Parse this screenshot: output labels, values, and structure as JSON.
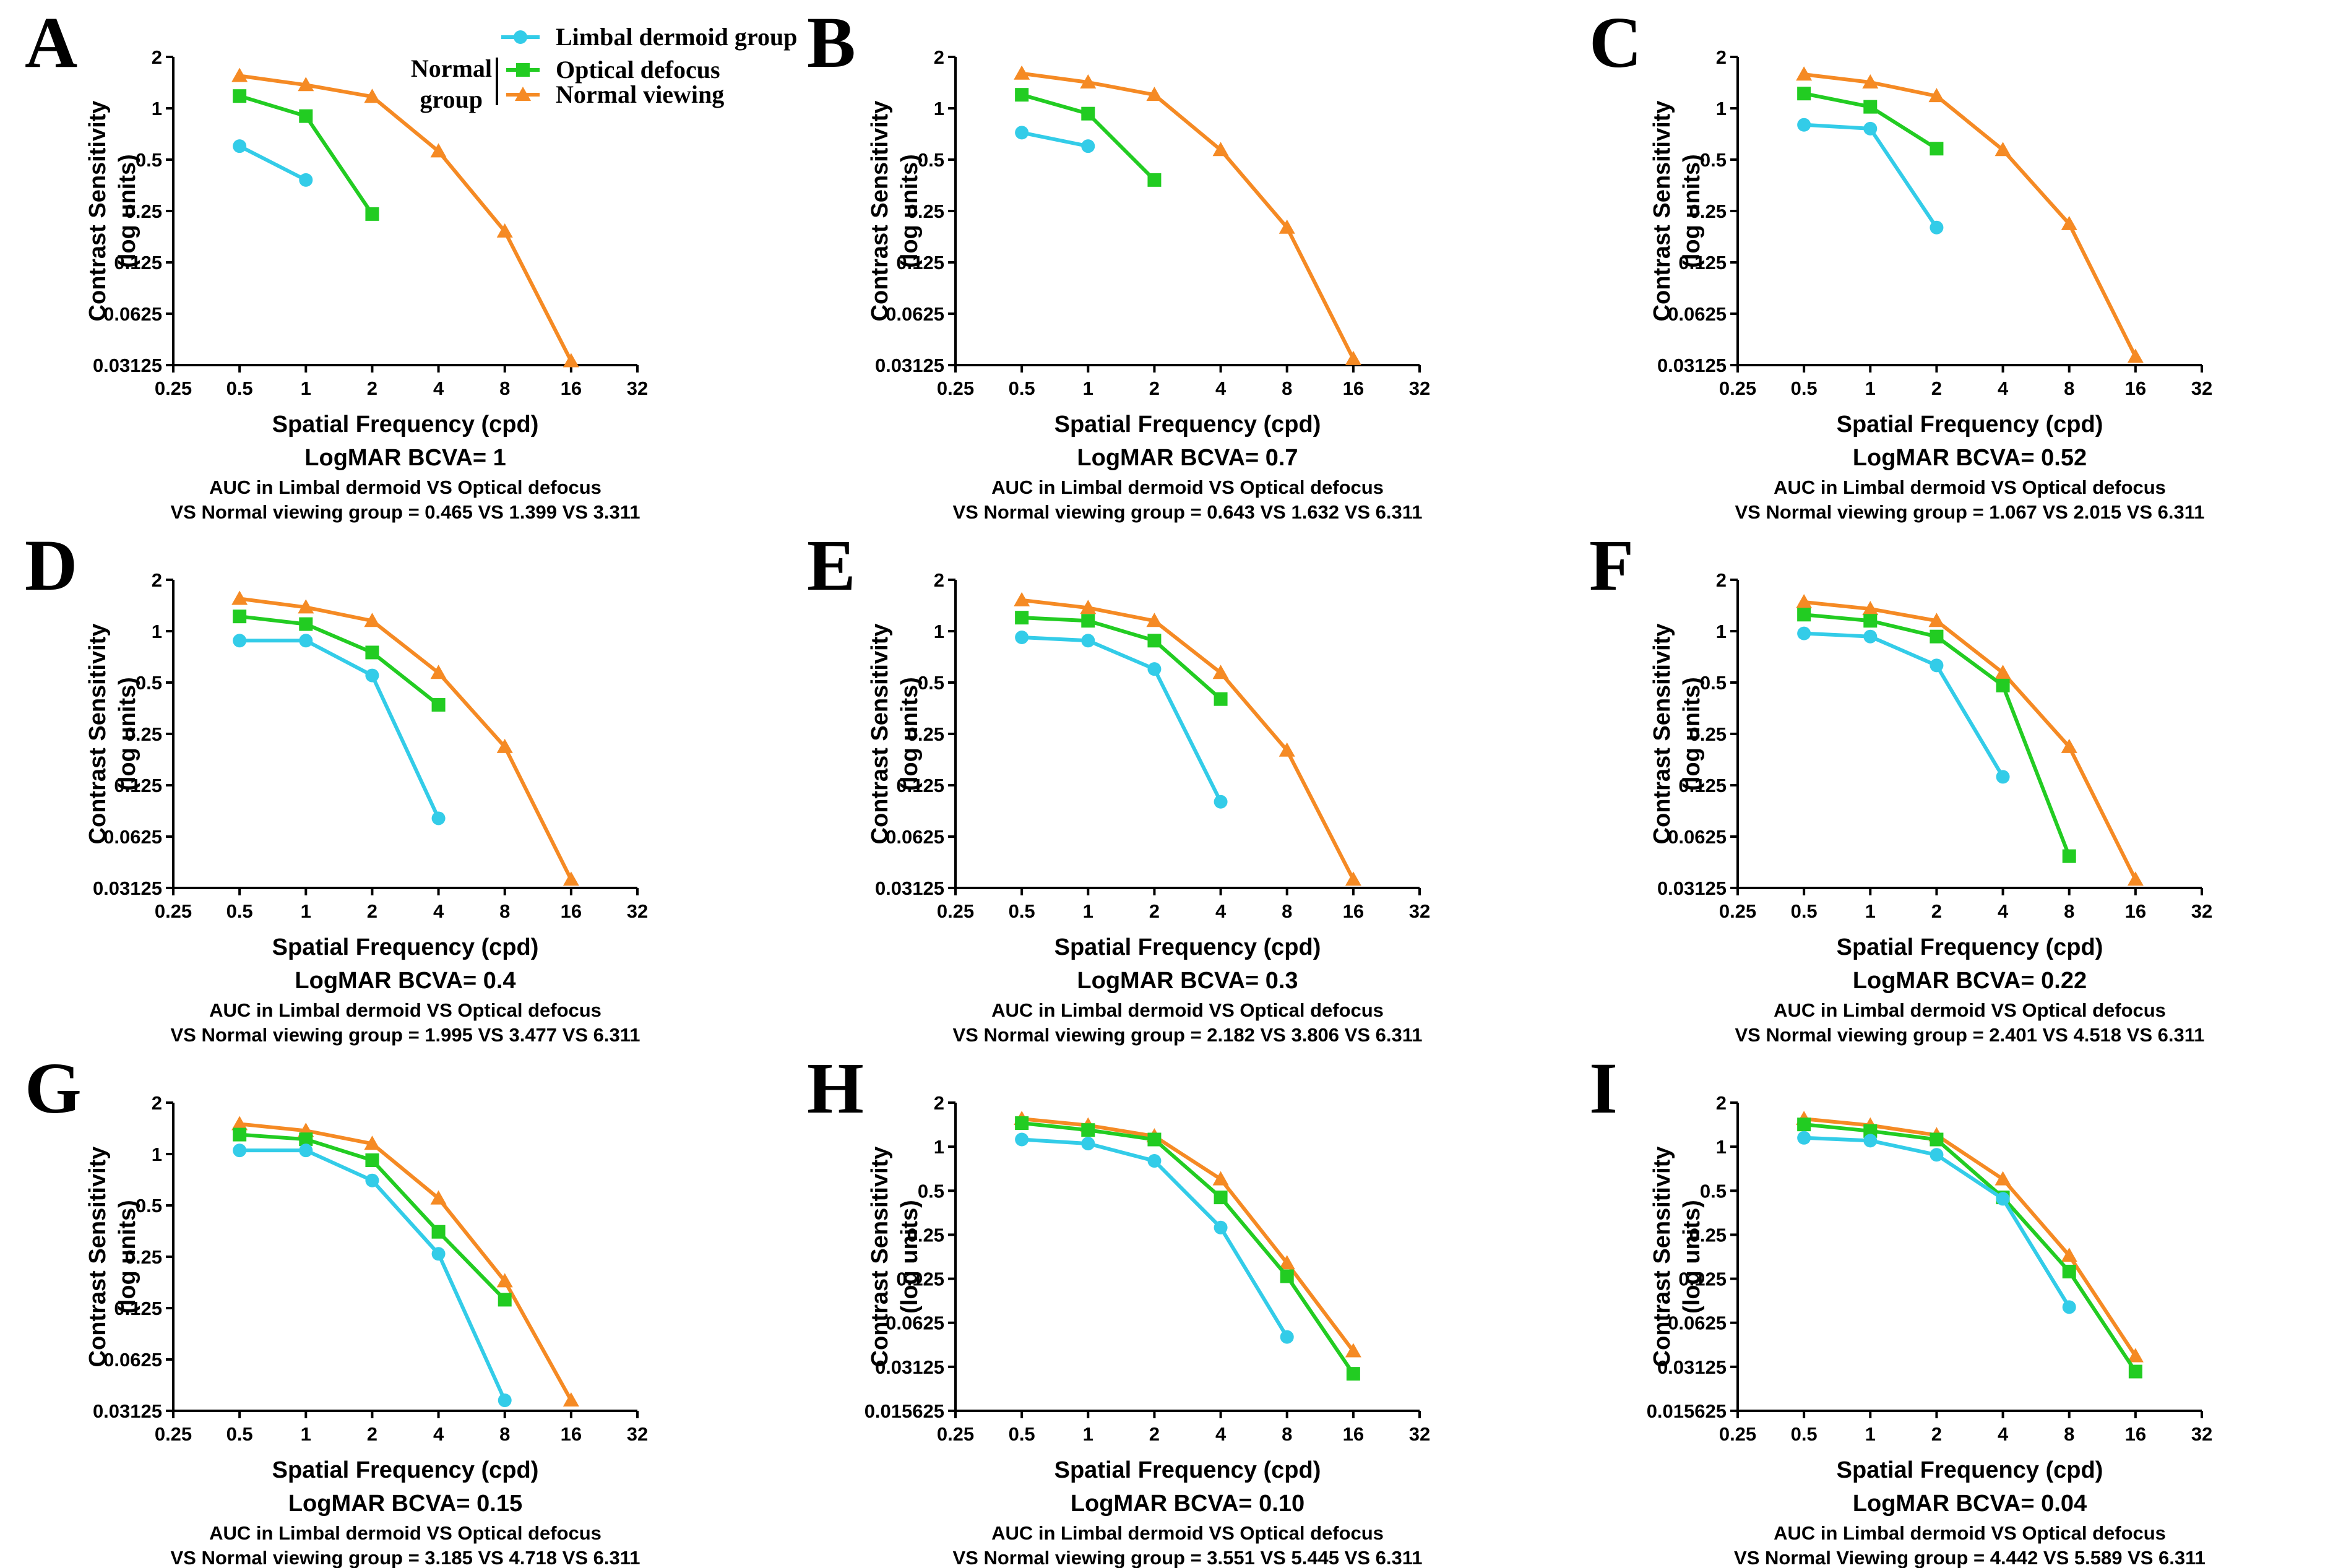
{
  "colors": {
    "limbal": "#33cce8",
    "optical": "#22cc22",
    "normal": "#f58a24",
    "axis": "#000000"
  },
  "legend": {
    "limbal": "Limbal dermoid group",
    "optical": "Optical defocus",
    "normal": "Normal viewing",
    "normal_group_1": "Normal",
    "normal_group_2": "group"
  },
  "common": {
    "xlabel": "Spatial Frequency (cpd)",
    "ylabel_1": "Contrast Sensitivity",
    "ylabel_2": "(log units)",
    "x_ticks": [
      "0.25",
      "0.5",
      "1",
      "2",
      "4",
      "8",
      "16",
      "32"
    ],
    "auc_line1": "AUC in Limbal dermoid  VS Optical defocus"
  },
  "chart_data": [
    {
      "id": "A",
      "type": "line",
      "bcva": "LogMAR BCVA= 1",
      "auc_line2": "VS Normal viewing group = 0.465 VS 1.399 VS 3.311",
      "xlabel": "Spatial Frequency (cpd)",
      "ylabel": "Contrast Sensitivity (log units)",
      "x_axis": {
        "scale": "log2",
        "range": [
          0.25,
          32
        ]
      },
      "y_axis": {
        "scale": "log2",
        "range": [
          0.03125,
          2
        ],
        "ticks": [
          "0.03125",
          "0.0625",
          "0.125",
          "0.25",
          "0.5",
          "1",
          "2"
        ]
      },
      "series": [
        {
          "name": "Limbal dermoid group",
          "marker": "circle",
          "x": [
            0.5,
            1
          ],
          "y": [
            0.6,
            0.38
          ]
        },
        {
          "name": "Optical defocus",
          "marker": "square",
          "x": [
            0.5,
            1,
            2
          ],
          "y": [
            1.18,
            0.9,
            0.24
          ]
        },
        {
          "name": "Normal viewing",
          "marker": "triangle",
          "x": [
            0.5,
            1,
            2,
            4,
            8,
            16
          ],
          "y": [
            1.55,
            1.37,
            1.17,
            0.56,
            0.19,
            0.033
          ]
        }
      ]
    },
    {
      "id": "B",
      "type": "line",
      "bcva": "LogMAR BCVA= 0.7",
      "auc_line2": "VS Normal viewing group  = 0.643 VS 1.632 VS 6.311",
      "xlabel": "Spatial Frequency (cpd)",
      "ylabel": "Contrast Sensitivity (log units)",
      "x_axis": {
        "scale": "log2",
        "range": [
          0.25,
          32
        ]
      },
      "y_axis": {
        "scale": "log2",
        "range": [
          0.03125,
          2
        ],
        "ticks": [
          "0.03125",
          "0.0625",
          "0.125",
          "0.25",
          "0.5",
          "1",
          "2"
        ]
      },
      "series": [
        {
          "name": "Limbal dermoid group",
          "marker": "circle",
          "x": [
            0.5,
            1
          ],
          "y": [
            0.72,
            0.6
          ]
        },
        {
          "name": "Optical defocus",
          "marker": "square",
          "x": [
            0.5,
            1,
            2
          ],
          "y": [
            1.2,
            0.93,
            0.38
          ]
        },
        {
          "name": "Normal viewing",
          "marker": "triangle",
          "x": [
            0.5,
            1,
            2,
            4,
            8,
            16
          ],
          "y": [
            1.6,
            1.42,
            1.2,
            0.57,
            0.2,
            0.034
          ]
        }
      ]
    },
    {
      "id": "C",
      "type": "line",
      "bcva": "LogMAR BCVA= 0.52",
      "auc_line2": "VS Normal viewing group = 1.067 VS 2.015 VS 6.311",
      "xlabel": "Spatial Frequency (cpd)",
      "ylabel": "Contrast Sensitivity (log units)",
      "x_axis": {
        "scale": "log2",
        "range": [
          0.25,
          32
        ]
      },
      "y_axis": {
        "scale": "log2",
        "range": [
          0.03125,
          2
        ],
        "ticks": [
          "0.03125",
          "0.0625",
          "0.125",
          "0.25",
          "0.5",
          "1",
          "2"
        ]
      },
      "series": [
        {
          "name": "Limbal dermoid group",
          "marker": "circle",
          "x": [
            0.5,
            1,
            2
          ],
          "y": [
            0.8,
            0.76,
            0.2
          ]
        },
        {
          "name": "Optical defocus",
          "marker": "square",
          "x": [
            0.5,
            1,
            2
          ],
          "y": [
            1.22,
            1.02,
            0.58
          ]
        },
        {
          "name": "Normal viewing",
          "marker": "triangle",
          "x": [
            0.5,
            1,
            2,
            4,
            8,
            16
          ],
          "y": [
            1.58,
            1.42,
            1.18,
            0.57,
            0.21,
            0.035
          ]
        }
      ]
    },
    {
      "id": "D",
      "type": "line",
      "bcva": "LogMAR BCVA= 0.4",
      "auc_line2": "VS Normal viewing group =  1.995 VS 3.477 VS 6.311",
      "xlabel": "Spatial Frequency (cpd)",
      "ylabel": "Contrast Sensitivity (log units)",
      "x_axis": {
        "scale": "log2",
        "range": [
          0.25,
          32
        ]
      },
      "y_axis": {
        "scale": "log2",
        "range": [
          0.03125,
          2
        ],
        "ticks": [
          "0.03125",
          "0.0625",
          "0.125",
          "0.25",
          "0.5",
          "1",
          "2"
        ]
      },
      "series": [
        {
          "name": "Limbal dermoid group",
          "marker": "circle",
          "x": [
            0.5,
            1,
            2,
            4
          ],
          "y": [
            0.88,
            0.88,
            0.55,
            0.08
          ]
        },
        {
          "name": "Optical defocus",
          "marker": "square",
          "x": [
            0.5,
            1,
            2,
            4
          ],
          "y": [
            1.22,
            1.1,
            0.75,
            0.37
          ]
        },
        {
          "name": "Normal viewing",
          "marker": "triangle",
          "x": [
            0.5,
            1,
            2,
            4,
            8,
            16
          ],
          "y": [
            1.55,
            1.38,
            1.15,
            0.57,
            0.21,
            0.035
          ]
        }
      ]
    },
    {
      "id": "E",
      "type": "line",
      "bcva": "LogMAR BCVA= 0.3",
      "auc_line2": "VS Normal viewing group = 2.182 VS 3.806 VS 6.311",
      "xlabel": "Spatial Frequency (cpd)",
      "ylabel": "Contrast Sensitivity (log units)",
      "x_axis": {
        "scale": "log2",
        "range": [
          0.25,
          32
        ]
      },
      "y_axis": {
        "scale": "log2",
        "range": [
          0.03125,
          2
        ],
        "ticks": [
          "0.03125",
          "0.0625",
          "0.125",
          "0.25",
          "0.5",
          "1",
          "2"
        ]
      },
      "series": [
        {
          "name": "Limbal dermoid group",
          "marker": "circle",
          "x": [
            0.5,
            1,
            2,
            4
          ],
          "y": [
            0.92,
            0.88,
            0.6,
            0.1
          ]
        },
        {
          "name": "Optical defocus",
          "marker": "square",
          "x": [
            0.5,
            1,
            2,
            4
          ],
          "y": [
            1.2,
            1.15,
            0.88,
            0.4
          ]
        },
        {
          "name": "Normal viewing",
          "marker": "triangle",
          "x": [
            0.5,
            1,
            2,
            4,
            8,
            16
          ],
          "y": [
            1.52,
            1.37,
            1.15,
            0.57,
            0.2,
            0.035
          ]
        }
      ]
    },
    {
      "id": "F",
      "type": "line",
      "bcva": "LogMAR BCVA= 0.22",
      "auc_line2": "VS Normal viewing group = 2.401 VS 4.518 VS 6.311",
      "xlabel": "Spatial Frequency (cpd)",
      "ylabel": "Contrast Sensitivity (log units)",
      "x_axis": {
        "scale": "log2",
        "range": [
          0.25,
          32
        ]
      },
      "y_axis": {
        "scale": "log2",
        "range": [
          0.03125,
          2
        ],
        "ticks": [
          "0.03125",
          "0.0625",
          "0.125",
          "0.25",
          "0.5",
          "1",
          "2"
        ]
      },
      "series": [
        {
          "name": "Limbal dermoid group",
          "marker": "circle",
          "x": [
            0.5,
            1,
            2,
            4
          ],
          "y": [
            0.97,
            0.93,
            0.63,
            0.14
          ]
        },
        {
          "name": "Optical defocus",
          "marker": "square",
          "x": [
            0.5,
            1,
            2,
            4,
            8
          ],
          "y": [
            1.25,
            1.15,
            0.93,
            0.48,
            0.048
          ]
        },
        {
          "name": "Normal viewing",
          "marker": "triangle",
          "x": [
            0.5,
            1,
            2,
            4,
            8,
            16
          ],
          "y": [
            1.48,
            1.35,
            1.15,
            0.57,
            0.21,
            0.035
          ]
        }
      ]
    },
    {
      "id": "G",
      "type": "line",
      "bcva": "LogMAR BCVA= 0.15",
      "auc_line2": "VS Normal viewing group = 3.185 VS 4.718 VS 6.311",
      "xlabel": "Spatial Frequency (cpd)",
      "ylabel": "Contrast Sensitivity (log units)",
      "x_axis": {
        "scale": "log2",
        "range": [
          0.25,
          32
        ]
      },
      "y_axis": {
        "scale": "log2",
        "range": [
          0.03125,
          2
        ],
        "ticks": [
          "0.03125",
          "0.0625",
          "0.125",
          "0.25",
          "0.5",
          "1",
          "2"
        ]
      },
      "series": [
        {
          "name": "Limbal dermoid group",
          "marker": "circle",
          "x": [
            0.5,
            1,
            2,
            4,
            8
          ],
          "y": [
            1.05,
            1.05,
            0.7,
            0.26,
            0.036
          ]
        },
        {
          "name": "Optical defocus",
          "marker": "square",
          "x": [
            0.5,
            1,
            2,
            4,
            8
          ],
          "y": [
            1.3,
            1.22,
            0.92,
            0.35,
            0.14
          ]
        },
        {
          "name": "Normal viewing",
          "marker": "triangle",
          "x": [
            0.5,
            1,
            2,
            4,
            8,
            16
          ],
          "y": [
            1.5,
            1.37,
            1.15,
            0.55,
            0.18,
            0.036
          ]
        }
      ]
    },
    {
      "id": "H",
      "type": "line",
      "bcva": "LogMAR BCVA= 0.10",
      "auc_line2": "VS Normal viewing group = 3.551 VS 5.445 VS 6.311",
      "xlabel": "Spatial Frequency (cpd)",
      "ylabel": "Contrast Sensitivity (log units)",
      "x_axis": {
        "scale": "log2",
        "range": [
          0.25,
          32
        ]
      },
      "y_axis": {
        "scale": "log2",
        "range": [
          0.015625,
          2
        ],
        "ticks": [
          "0.015625",
          "0.03125",
          "0.0625",
          "0.125",
          "0.25",
          "0.5",
          "1",
          "2"
        ]
      },
      "series": [
        {
          "name": "Limbal dermoid group",
          "marker": "circle",
          "x": [
            0.5,
            1,
            2,
            4,
            8
          ],
          "y": [
            1.12,
            1.05,
            0.8,
            0.28,
            0.05
          ]
        },
        {
          "name": "Optical defocus",
          "marker": "square",
          "x": [
            0.5,
            1,
            2,
            4,
            8,
            16
          ],
          "y": [
            1.45,
            1.3,
            1.12,
            0.45,
            0.13,
            0.028
          ]
        },
        {
          "name": "Normal viewing",
          "marker": "triangle",
          "x": [
            0.5,
            1,
            2,
            4,
            8,
            16
          ],
          "y": [
            1.55,
            1.4,
            1.18,
            0.6,
            0.16,
            0.04
          ]
        }
      ]
    },
    {
      "id": "I",
      "type": "line",
      "bcva": "LogMAR BCVA= 0.04",
      "auc_line2": "VS Normal Viewing group = 4.442 VS 5.589 VS 6.311",
      "xlabel": "Spatial Frequency (cpd)",
      "ylabel": "Contrast Sensitivity (log units)",
      "x_axis": {
        "scale": "log2",
        "range": [
          0.25,
          32
        ]
      },
      "y_axis": {
        "scale": "log2",
        "range": [
          0.015625,
          2
        ],
        "ticks": [
          "0.015625",
          "0.03125",
          "0.0625",
          "0.125",
          "0.25",
          "0.5",
          "1",
          "2"
        ]
      },
      "series": [
        {
          "name": "Limbal dermoid group",
          "marker": "circle",
          "x": [
            0.5,
            1,
            2,
            4,
            8
          ],
          "y": [
            1.15,
            1.1,
            0.88,
            0.44,
            0.08
          ]
        },
        {
          "name": "Optical defocus",
          "marker": "square",
          "x": [
            0.5,
            1,
            2,
            4,
            8,
            16
          ],
          "y": [
            1.42,
            1.28,
            1.12,
            0.45,
            0.14,
            0.029
          ]
        },
        {
          "name": "Normal viewing",
          "marker": "triangle",
          "x": [
            0.5,
            1,
            2,
            4,
            8,
            16
          ],
          "y": [
            1.55,
            1.4,
            1.2,
            0.6,
            0.18,
            0.037
          ]
        }
      ]
    }
  ]
}
